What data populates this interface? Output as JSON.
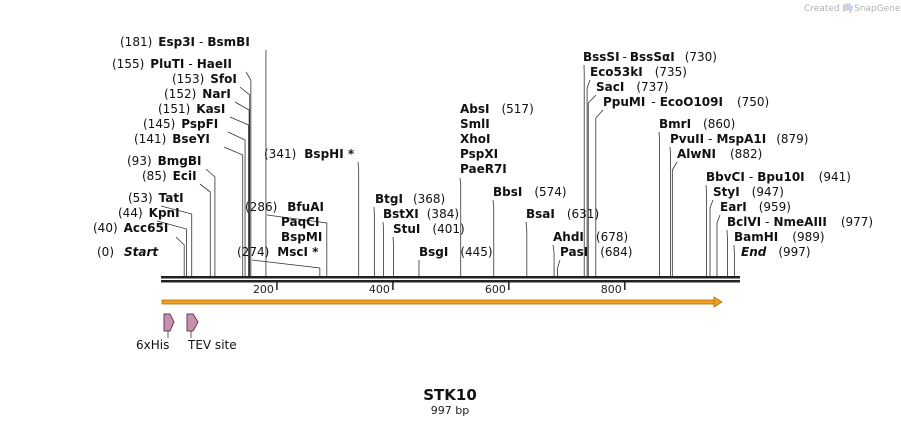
{
  "credit": "Created by",
  "brand": "SnapGene",
  "map": {
    "name": "STK10",
    "length_label": "997 bp",
    "length": 997,
    "ticks": [
      200,
      400,
      600,
      800
    ]
  },
  "sites": [
    {
      "pos": "(0)",
      "name": "Start",
      "italic": true
    },
    {
      "pos": "(40)",
      "name": "Acc65I"
    },
    {
      "pos": "(44)",
      "name": "KpnI"
    },
    {
      "pos": "(53)",
      "name": "TatI"
    },
    {
      "pos": "(85)",
      "name": "EciI"
    },
    {
      "pos": "(93)",
      "name": "BmgBI"
    },
    {
      "pos": "(141)",
      "name": "BseYI"
    },
    {
      "pos": "(145)",
      "name": "PspFI"
    },
    {
      "pos": "(151)",
      "name": "KasI"
    },
    {
      "pos": "(152)",
      "name": "NarI"
    },
    {
      "pos": "(153)",
      "name": "SfoI"
    },
    {
      "pos": "(155)",
      "name": "PluTI",
      "name2": "HaeII"
    },
    {
      "pos": "(181)",
      "name": "Esp3I",
      "name2": "BsmBI"
    },
    {
      "pos": "(274)",
      "name": "MscI *"
    },
    {
      "pos": "(286)",
      "name": "BfuAI",
      "name_b": "PaqCI",
      "name_c": "BspMI"
    },
    {
      "pos": "(341)",
      "name": "BspHI *"
    },
    {
      "pos": "(368)",
      "name": "BtgI"
    },
    {
      "pos": "(384)",
      "name": "BstXI"
    },
    {
      "pos": "(401)",
      "name": "StuI"
    },
    {
      "pos": "(445)",
      "name": "BsgI"
    },
    {
      "pos": "(517)",
      "name": "AbsI",
      "name_b": "SmlI",
      "name_c": "XhoI",
      "name_d": "PspXI",
      "name_e": "PaeR7I"
    },
    {
      "pos": "(574)",
      "name": "BbsI"
    },
    {
      "pos": "(631)",
      "name": "BsaI"
    },
    {
      "pos": "(678)",
      "name": "AhdI"
    },
    {
      "pos": "(684)",
      "name": "PasI"
    },
    {
      "pos": "(730)",
      "name": "BssSI",
      "name2": "BssSαI"
    },
    {
      "pos": "(735)",
      "name": "Eco53kI"
    },
    {
      "pos": "(737)",
      "name": "SacI"
    },
    {
      "pos": "(750)",
      "name": "PpuMI",
      "name2": "EcoO109I"
    },
    {
      "pos": "(860)",
      "name": "BmrI"
    },
    {
      "pos": "(879)",
      "name": "PvuII",
      "name2": "MspA1I"
    },
    {
      "pos": "(882)",
      "name": "AlwNI"
    },
    {
      "pos": "(941)",
      "name": "BbvCI",
      "name2": "Bpu10I"
    },
    {
      "pos": "(947)",
      "name": "StyI"
    },
    {
      "pos": "(959)",
      "name": "EarI"
    },
    {
      "pos": "(977)",
      "name": "BclVI",
      "name2": "NmeAIII"
    },
    {
      "pos": "(989)",
      "name": "BamHI"
    },
    {
      "pos": "(997)",
      "name": "End",
      "italic": true
    }
  ],
  "features": [
    {
      "name": "6xHis"
    },
    {
      "name": "TEV site"
    }
  ],
  "colors": {
    "orf": "#f0a020",
    "feature": "#c890b0",
    "backbone": "#222222"
  }
}
